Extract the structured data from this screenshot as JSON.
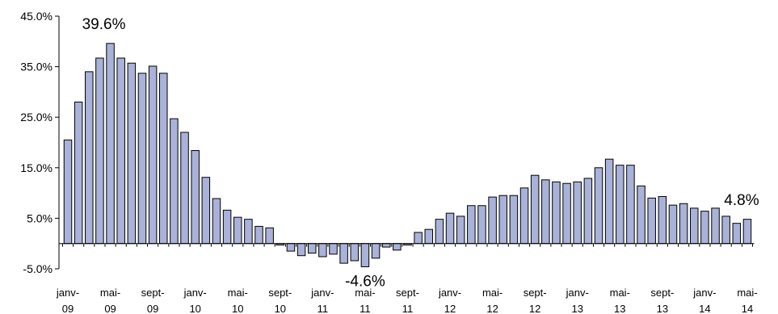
{
  "chart_data": {
    "type": "bar",
    "title": "",
    "xlabel": "",
    "ylabel": "",
    "ylim": [
      -5.0,
      45.0
    ],
    "yticks": [
      "45.0%",
      "35.0%",
      "25.0%",
      "15.0%",
      "5.0%",
      "-5.0%"
    ],
    "ytick_values": [
      45,
      35,
      25,
      15,
      5,
      -5
    ],
    "xtick_labels": [
      {
        "index": 0,
        "top": "janv-",
        "bottom": "09"
      },
      {
        "index": 4,
        "top": "mai-",
        "bottom": "09"
      },
      {
        "index": 8,
        "top": "sept-",
        "bottom": "09"
      },
      {
        "index": 12,
        "top": "janv-",
        "bottom": "10"
      },
      {
        "index": 16,
        "top": "mai-",
        "bottom": "10"
      },
      {
        "index": 20,
        "top": "sept-",
        "bottom": "10"
      },
      {
        "index": 24,
        "top": "janv-",
        "bottom": "11"
      },
      {
        "index": 28,
        "top": "mai-",
        "bottom": "11"
      },
      {
        "index": 32,
        "top": "sept-",
        "bottom": "11"
      },
      {
        "index": 36,
        "top": "janv-",
        "bottom": "12"
      },
      {
        "index": 40,
        "top": "mai-",
        "bottom": "12"
      },
      {
        "index": 44,
        "top": "sept-",
        "bottom": "12"
      },
      {
        "index": 48,
        "top": "janv-",
        "bottom": "13"
      },
      {
        "index": 52,
        "top": "mai-",
        "bottom": "13"
      },
      {
        "index": 56,
        "top": "sept-",
        "bottom": "13"
      },
      {
        "index": 60,
        "top": "janv-",
        "bottom": "14"
      },
      {
        "index": 64,
        "top": "mai-",
        "bottom": "14"
      }
    ],
    "values": [
      20.5,
      28.0,
      34.0,
      36.7,
      39.6,
      36.7,
      35.7,
      33.7,
      35.1,
      33.7,
      24.7,
      22.0,
      18.4,
      13.1,
      8.9,
      6.6,
      5.2,
      4.8,
      3.4,
      3.1,
      -0.3,
      -1.5,
      -2.4,
      -1.9,
      -2.6,
      -2.1,
      -3.9,
      -3.4,
      -4.6,
      -2.9,
      -0.7,
      -1.3,
      -0.3,
      2.2,
      2.8,
      4.8,
      6.0,
      5.4,
      7.5,
      7.5,
      9.2,
      9.5,
      9.5,
      11.0,
      13.5,
      12.6,
      12.2,
      11.9,
      12.2,
      12.9,
      15.0,
      16.7,
      15.5,
      15.5,
      11.4,
      9.0,
      9.3,
      7.6,
      7.9,
      7.0,
      6.4,
      7.0,
      5.4,
      4.0,
      4.8
    ],
    "bar_color": "#a9b2d8",
    "bar_edge_color": "#000000",
    "annotations": [
      {
        "index": 4,
        "text": "39.6%"
      },
      {
        "index": 28,
        "text": "-4.6%"
      },
      {
        "index": 64,
        "text": "4.8%"
      }
    ]
  }
}
